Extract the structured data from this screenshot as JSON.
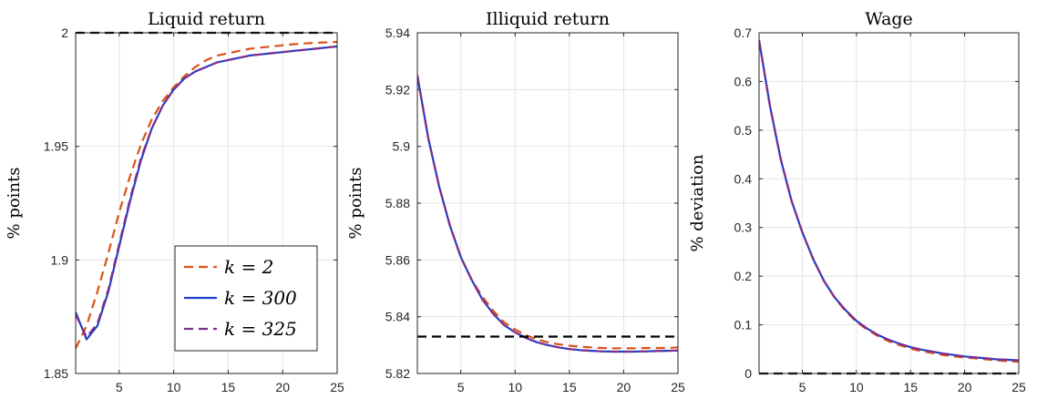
{
  "chart_data": [
    {
      "type": "line",
      "title": "Liquid return",
      "xlabel": "",
      "ylabel": "% points",
      "xlim": [
        1,
        25
      ],
      "ylim": [
        1.85,
        2.0
      ],
      "xticks": [
        5,
        10,
        15,
        20,
        25
      ],
      "yticks": [
        1.85,
        1.9,
        1.95,
        2.0
      ],
      "ytick_labels": [
        "1.85",
        "1.9",
        "1.95",
        "2"
      ],
      "grid": true,
      "legend": "bottom-right",
      "reference_line": 2.0,
      "x": [
        1,
        2,
        3,
        4,
        5,
        6,
        7,
        8,
        9,
        10,
        11,
        12,
        13,
        14,
        15,
        16,
        17,
        18,
        19,
        20,
        21,
        22,
        23,
        24,
        25
      ],
      "series": [
        {
          "name": "k = 2",
          "color": "#d95319",
          "style": "dashed",
          "values": [
            1.861,
            1.871,
            1.886,
            1.903,
            1.921,
            1.937,
            1.951,
            1.962,
            1.97,
            1.976,
            1.981,
            1.985,
            1.988,
            1.99,
            1.991,
            1.992,
            1.993,
            1.9935,
            1.994,
            1.9945,
            1.995,
            1.9953,
            1.9956,
            1.9958,
            1.996
          ]
        },
        {
          "name": "k = 300",
          "color": "#1f3fc9",
          "style": "solid",
          "values": [
            1.877,
            1.865,
            1.871,
            1.886,
            1.906,
            1.926,
            1.944,
            1.958,
            1.968,
            1.975,
            1.98,
            1.983,
            1.985,
            1.987,
            1.988,
            1.989,
            1.99,
            1.9905,
            1.991,
            1.9915,
            1.992,
            1.9925,
            1.993,
            1.9935,
            1.994
          ]
        },
        {
          "name": "k = 325",
          "color": "#7e2f8e",
          "style": "dashed",
          "values": [
            1.876,
            1.866,
            1.872,
            1.887,
            1.907,
            1.927,
            1.945,
            1.958,
            1.968,
            1.975,
            1.98,
            1.983,
            1.985,
            1.987,
            1.988,
            1.989,
            1.99,
            1.9905,
            1.991,
            1.9915,
            1.992,
            1.9925,
            1.993,
            1.9935,
            1.994
          ]
        }
      ]
    },
    {
      "type": "line",
      "title": "Illiquid return",
      "xlabel": "",
      "ylabel": "% points",
      "xlim": [
        1,
        25
      ],
      "ylim": [
        5.82,
        5.94
      ],
      "xticks": [
        5,
        10,
        15,
        20,
        25
      ],
      "yticks": [
        5.82,
        5.84,
        5.86,
        5.88,
        5.9,
        5.92,
        5.94
      ],
      "ytick_labels": [
        "5.82",
        "5.84",
        "5.86",
        "5.88",
        "5.9",
        "5.92",
        "5.94"
      ],
      "grid": true,
      "reference_line": 5.833,
      "x": [
        1,
        2,
        3,
        4,
        5,
        6,
        7,
        8,
        9,
        10,
        11,
        12,
        13,
        14,
        15,
        16,
        17,
        18,
        19,
        20,
        21,
        22,
        23,
        24,
        25
      ],
      "series": [
        {
          "name": "k = 2",
          "color": "#d95319",
          "style": "dashed",
          "values": [
            5.925,
            5.903,
            5.886,
            5.872,
            5.861,
            5.853,
            5.847,
            5.842,
            5.838,
            5.8355,
            5.8335,
            5.832,
            5.831,
            5.8303,
            5.8298,
            5.8294,
            5.8292,
            5.829,
            5.8289,
            5.8289,
            5.8289,
            5.829,
            5.829,
            5.829,
            5.8292
          ]
        },
        {
          "name": "k = 300",
          "color": "#1f3fc9",
          "style": "solid",
          "values": [
            5.925,
            5.903,
            5.886,
            5.872,
            5.861,
            5.853,
            5.846,
            5.841,
            5.837,
            5.8345,
            5.8325,
            5.831,
            5.83,
            5.8292,
            5.8286,
            5.8282,
            5.828,
            5.8278,
            5.8277,
            5.8277,
            5.8277,
            5.8278,
            5.8279,
            5.828,
            5.8281
          ]
        },
        {
          "name": "k = 325",
          "color": "#7e2f8e",
          "style": "dashed",
          "values": [
            5.925,
            5.903,
            5.886,
            5.872,
            5.861,
            5.853,
            5.846,
            5.841,
            5.837,
            5.8345,
            5.8325,
            5.831,
            5.83,
            5.8292,
            5.8286,
            5.8282,
            5.828,
            5.8278,
            5.8277,
            5.8277,
            5.8277,
            5.8278,
            5.8279,
            5.828,
            5.8281
          ]
        }
      ]
    },
    {
      "type": "line",
      "title": "Wage",
      "xlabel": "",
      "ylabel": "% deviation",
      "xlim": [
        1,
        25
      ],
      "ylim": [
        0,
        0.7
      ],
      "xticks": [
        5,
        10,
        15,
        20,
        25
      ],
      "yticks": [
        0,
        0.1,
        0.2,
        0.3,
        0.4,
        0.5,
        0.6,
        0.7
      ],
      "ytick_labels": [
        "0",
        "0.1",
        "0.2",
        "0.3",
        "0.4",
        "0.5",
        "0.6",
        "0.7"
      ],
      "grid": true,
      "reference_line": 0,
      "x": [
        1,
        2,
        3,
        4,
        5,
        6,
        7,
        8,
        9,
        10,
        11,
        12,
        13,
        14,
        15,
        16,
        17,
        18,
        19,
        20,
        21,
        22,
        23,
        24,
        25
      ],
      "series": [
        {
          "name": "k = 2",
          "color": "#d95319",
          "style": "dashed",
          "values": [
            0.685,
            0.55,
            0.44,
            0.355,
            0.29,
            0.235,
            0.19,
            0.155,
            0.128,
            0.106,
            0.09,
            0.077,
            0.066,
            0.058,
            0.051,
            0.046,
            0.042,
            0.038,
            0.035,
            0.033,
            0.031,
            0.029,
            0.027,
            0.025,
            0.024
          ]
        },
        {
          "name": "k = 300",
          "color": "#1f3fc9",
          "style": "solid",
          "values": [
            0.685,
            0.55,
            0.44,
            0.355,
            0.29,
            0.235,
            0.19,
            0.156,
            0.13,
            0.108,
            0.092,
            0.079,
            0.069,
            0.061,
            0.054,
            0.049,
            0.045,
            0.041,
            0.038,
            0.035,
            0.033,
            0.031,
            0.029,
            0.028,
            0.027
          ]
        },
        {
          "name": "k = 325",
          "color": "#7e2f8e",
          "style": "dashed",
          "values": [
            0.685,
            0.55,
            0.44,
            0.355,
            0.29,
            0.235,
            0.19,
            0.156,
            0.13,
            0.108,
            0.092,
            0.079,
            0.069,
            0.061,
            0.054,
            0.049,
            0.045,
            0.041,
            0.038,
            0.035,
            0.033,
            0.031,
            0.029,
            0.028,
            0.027
          ]
        }
      ]
    }
  ],
  "legend": {
    "entries": [
      {
        "label": "k = 2",
        "color": "#d95319",
        "style": "dashed"
      },
      {
        "label": "k = 300",
        "color": "#1f3fc9",
        "style": "solid"
      },
      {
        "label": "k = 325",
        "color": "#7e2f8e",
        "style": "dashed"
      }
    ]
  }
}
